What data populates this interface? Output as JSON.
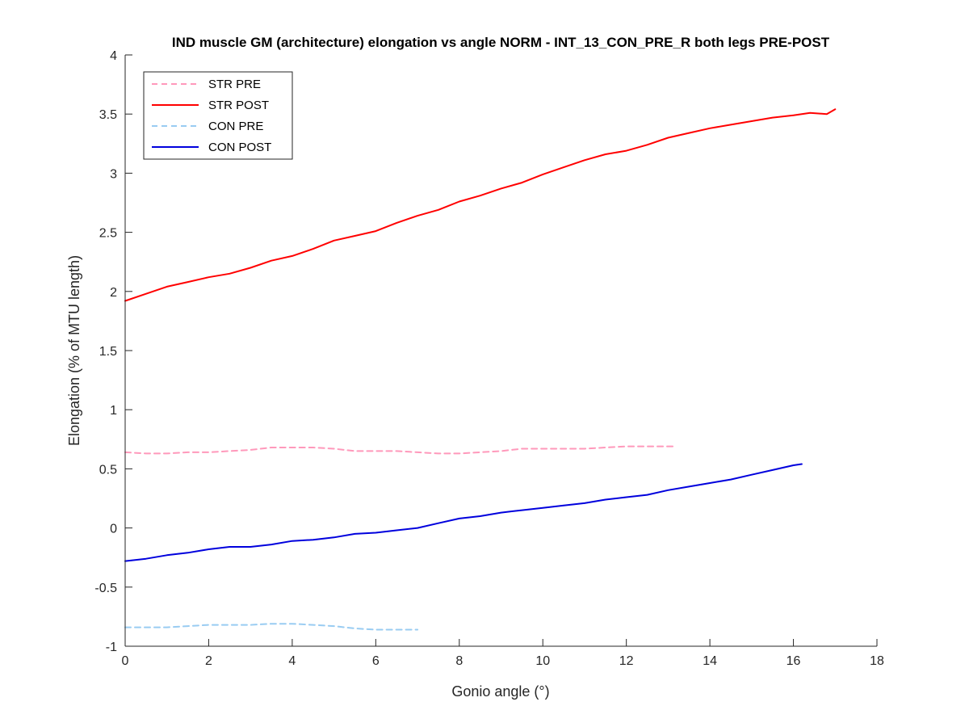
{
  "chart_data": {
    "type": "line",
    "title": "IND muscle GM (architecture) elongation vs angle NORM - INT_13_CON_PRE_R both legs PRE-POST",
    "xlabel": "Gonio angle (°)",
    "ylabel": "Elongation (% of MTU length)",
    "xlim": [
      0,
      18
    ],
    "ylim": [
      -1,
      4
    ],
    "xticks": [
      0,
      2,
      4,
      6,
      8,
      10,
      12,
      14,
      16,
      18
    ],
    "yticks": [
      -1,
      -0.5,
      0,
      0.5,
      1,
      1.5,
      2,
      2.5,
      3,
      3.5,
      4
    ],
    "grid": false,
    "legend_position": "top-left",
    "series": [
      {
        "name": "STR PRE",
        "color": "#ff99bb",
        "style": "dashed",
        "x": [
          0,
          0.5,
          1,
          1.5,
          2,
          2.5,
          3,
          3.5,
          4,
          4.5,
          5,
          5.5,
          6,
          6.5,
          7,
          7.5,
          8,
          8.5,
          9,
          9.5,
          10,
          10.5,
          11,
          11.5,
          12,
          12.5,
          13,
          13.2
        ],
        "values": [
          0.64,
          0.63,
          0.63,
          0.64,
          0.64,
          0.65,
          0.66,
          0.68,
          0.68,
          0.68,
          0.67,
          0.65,
          0.65,
          0.65,
          0.64,
          0.63,
          0.63,
          0.64,
          0.65,
          0.67,
          0.67,
          0.67,
          0.67,
          0.68,
          0.69,
          0.69,
          0.69,
          0.69
        ]
      },
      {
        "name": "STR POST",
        "color": "#ff0000",
        "style": "solid",
        "x": [
          0,
          0.5,
          1,
          1.5,
          2,
          2.5,
          3,
          3.5,
          4,
          4.5,
          5,
          5.5,
          6,
          6.5,
          7,
          7.5,
          8,
          8.5,
          9,
          9.5,
          10,
          10.5,
          11,
          11.5,
          12,
          12.5,
          13,
          13.5,
          14,
          14.5,
          15,
          15.5,
          16,
          16.4,
          16.8,
          17
        ],
        "values": [
          1.92,
          1.98,
          2.04,
          2.08,
          2.12,
          2.15,
          2.2,
          2.26,
          2.3,
          2.36,
          2.43,
          2.47,
          2.51,
          2.58,
          2.64,
          2.69,
          2.76,
          2.81,
          2.87,
          2.92,
          2.99,
          3.05,
          3.11,
          3.16,
          3.19,
          3.24,
          3.3,
          3.34,
          3.38,
          3.41,
          3.44,
          3.47,
          3.49,
          3.51,
          3.5,
          3.54
        ]
      },
      {
        "name": "CON PRE",
        "color": "#99ccf2",
        "style": "dashed",
        "x": [
          0,
          0.5,
          1,
          1.5,
          2,
          2.5,
          3,
          3.5,
          4,
          4.5,
          5,
          5.5,
          6,
          6.5,
          7
        ],
        "values": [
          -0.84,
          -0.84,
          -0.84,
          -0.83,
          -0.82,
          -0.82,
          -0.82,
          -0.81,
          -0.81,
          -0.82,
          -0.83,
          -0.85,
          -0.86,
          -0.86,
          -0.86
        ]
      },
      {
        "name": "CON POST",
        "color": "#0000dd",
        "style": "solid",
        "x": [
          0,
          0.5,
          1,
          1.5,
          2,
          2.5,
          3,
          3.5,
          4,
          4.5,
          5,
          5.5,
          6,
          6.5,
          7,
          7.5,
          8,
          8.5,
          9,
          9.5,
          10,
          10.5,
          11,
          11.5,
          12,
          12.5,
          13,
          13.5,
          14,
          14.5,
          15,
          15.5,
          16,
          16.2
        ],
        "values": [
          -0.28,
          -0.26,
          -0.23,
          -0.21,
          -0.18,
          -0.16,
          -0.16,
          -0.14,
          -0.11,
          -0.1,
          -0.08,
          -0.05,
          -0.04,
          -0.02,
          0,
          0.04,
          0.08,
          0.1,
          0.13,
          0.15,
          0.17,
          0.19,
          0.21,
          0.24,
          0.26,
          0.28,
          0.32,
          0.35,
          0.38,
          0.41,
          0.45,
          0.49,
          0.53,
          0.54
        ]
      }
    ]
  }
}
